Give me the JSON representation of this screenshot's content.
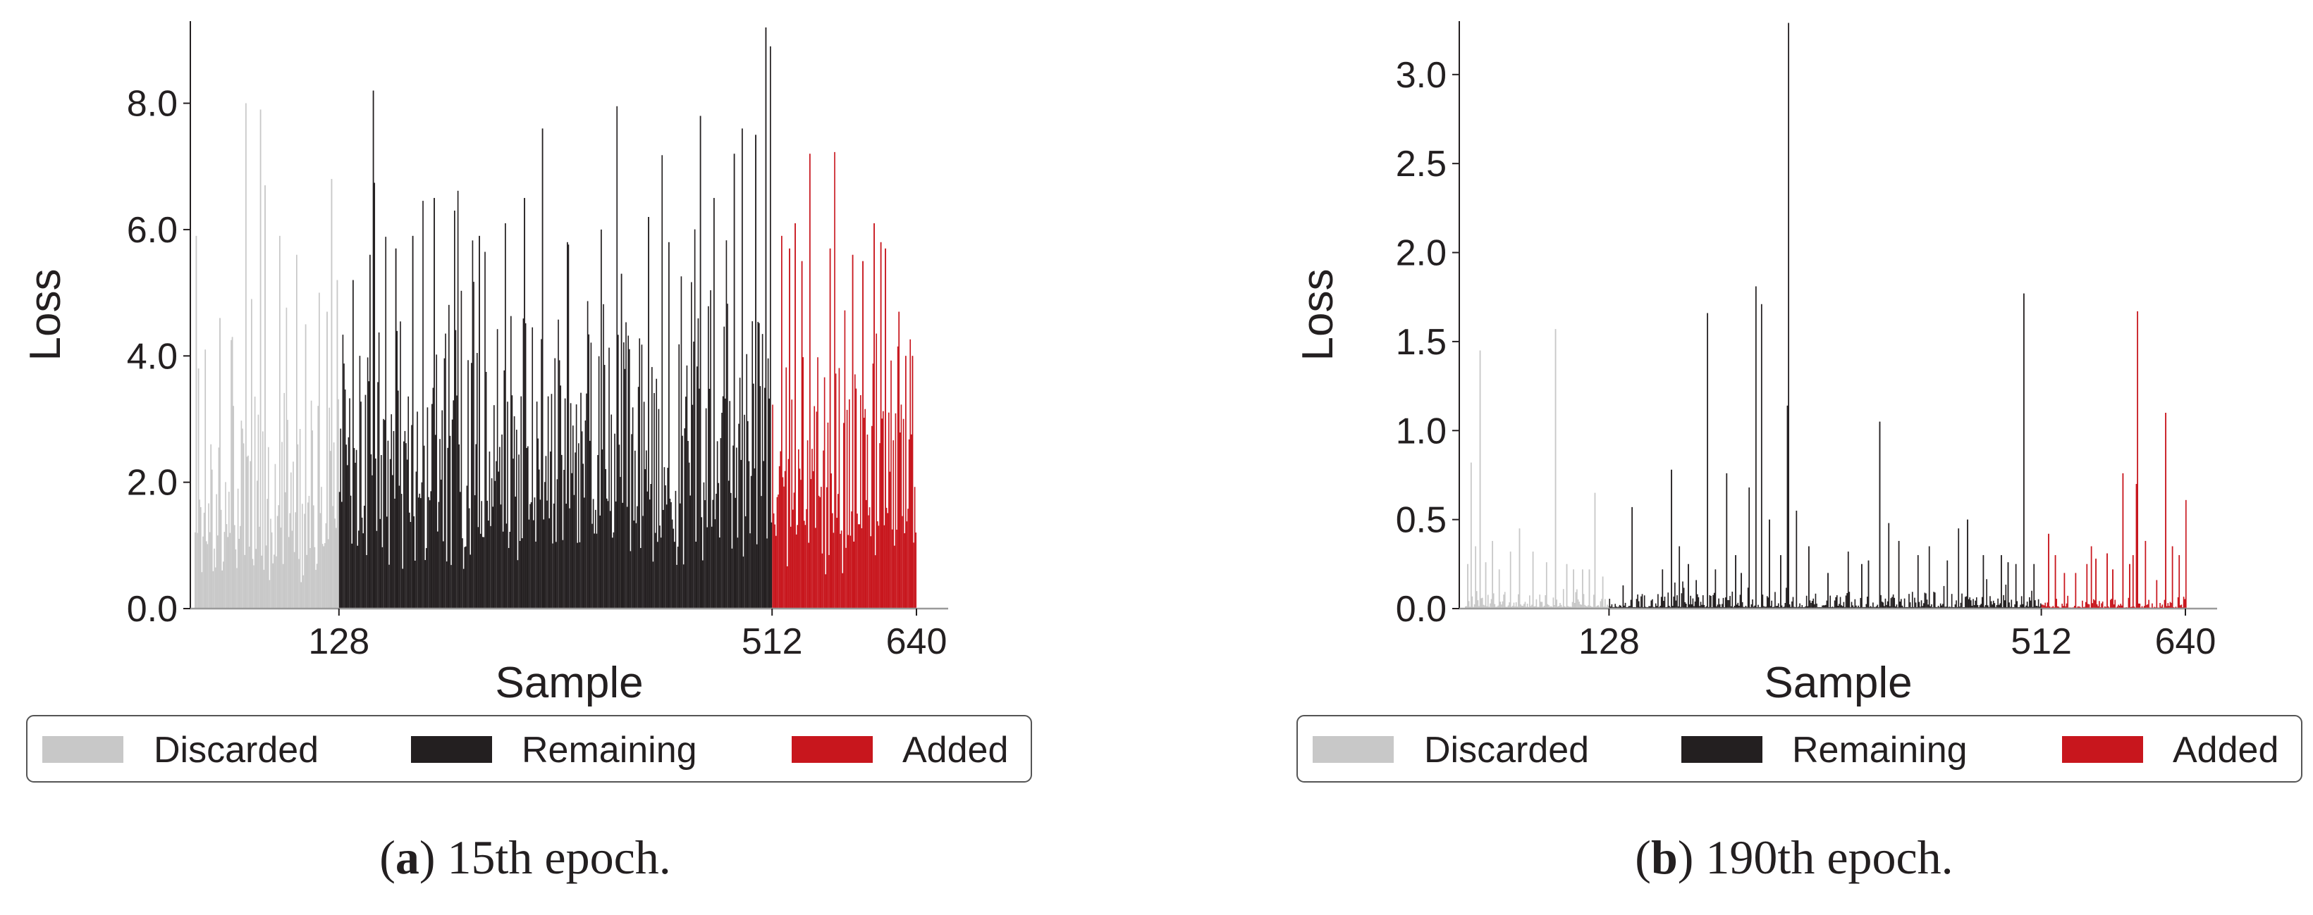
{
  "colors": {
    "discarded": "#c8c8c8",
    "remaining": "#231f20",
    "added": "#c8161d",
    "axis": "#231f20"
  },
  "chart_data": [
    {
      "type": "bar",
      "caption_letter": "a",
      "caption_text": ") 15th epoch.",
      "xlabel": "Sample",
      "ylabel": "Loss",
      "xlim": [
        0,
        640
      ],
      "ylim": [
        0,
        9.3
      ],
      "xticks": [
        128,
        512,
        640
      ],
      "yticks": [
        0,
        2,
        4,
        6,
        8
      ],
      "ytick_labels": [
        "0.0",
        "2.0",
        "4.0",
        "6.0",
        "8.0"
      ],
      "grid": false,
      "legend_position": "bottom",
      "series": [
        {
          "name": "Discarded",
          "x_range": [
            0,
            128
          ],
          "typical_value": 1.6,
          "peaks": [
            [
              1,
              5.9
            ],
            [
              3,
              3.8
            ],
            [
              9,
              4.1
            ],
            [
              14,
              2.6
            ],
            [
              22,
              4.6
            ],
            [
              33,
              4.3
            ],
            [
              45,
              8.0
            ],
            [
              50,
              4.9
            ],
            [
              58,
              7.9
            ],
            [
              62,
              6.7
            ],
            [
              75,
              5.9
            ],
            [
              90,
              5.6
            ],
            [
              98,
              4.5
            ],
            [
              110,
              5.0
            ],
            [
              117,
              4.7
            ],
            [
              121,
              6.8
            ],
            [
              126,
              5.2
            ]
          ]
        },
        {
          "name": "Remaining",
          "x_range": [
            128,
            512
          ],
          "typical_value": 2.3,
          "peaks": [
            [
              140,
              5.2
            ],
            [
              155,
              5.6
            ],
            [
              158,
              8.2
            ],
            [
              178,
              5.7
            ],
            [
              193,
              5.9
            ],
            [
              212,
              6.5
            ],
            [
              230,
              6.3
            ],
            [
              252,
              5.9
            ],
            [
              275,
              6.1
            ],
            [
              292,
              6.5
            ],
            [
              308,
              7.6
            ],
            [
              330,
              5.8
            ],
            [
              360,
              6.0
            ],
            [
              378,
              5.3
            ],
            [
              402,
              6.2
            ],
            [
              420,
              5.8
            ],
            [
              448,
              7.8
            ],
            [
              460,
              6.5
            ],
            [
              478,
              7.2
            ],
            [
              485,
              7.6
            ],
            [
              497,
              7.5
            ],
            [
              506,
              9.2
            ],
            [
              510,
              8.9
            ]
          ]
        },
        {
          "name": "Added",
          "x_range": [
            512,
            640
          ],
          "typical_value": 2.0,
          "peaks": [
            [
              520,
              5.9
            ],
            [
              527,
              5.7
            ],
            [
              532,
              6.1
            ],
            [
              538,
              5.5
            ],
            [
              545,
              7.2
            ],
            [
              563,
              5.7
            ],
            [
              583,
              5.6
            ],
            [
              592,
              5.5
            ],
            [
              602,
              6.1
            ],
            [
              608,
              5.8
            ],
            [
              612,
              5.7
            ],
            [
              624,
              4.7
            ],
            [
              630,
              4.0
            ],
            [
              636,
              4.0
            ]
          ]
        }
      ]
    },
    {
      "type": "bar",
      "caption_letter": "b",
      "caption_text": ") 190th epoch.",
      "xlabel": "Sample",
      "ylabel": "Loss",
      "xlim": [
        0,
        640
      ],
      "ylim": [
        0,
        3.3
      ],
      "xticks": [
        128,
        512,
        640
      ],
      "yticks": [
        0,
        0.5,
        1.0,
        1.5,
        2.0,
        2.5,
        3.0
      ],
      "ytick_labels": [
        "0.0",
        "0.5",
        "1.0",
        "1.5",
        "2.0",
        "2.5",
        "3.0"
      ],
      "grid": false,
      "legend_position": "bottom",
      "series": [
        {
          "name": "Discarded",
          "x_range": [
            0,
            128
          ],
          "typical_value": 0.05,
          "peaks": [
            [
              2,
              0.25
            ],
            [
              5,
              0.82
            ],
            [
              9,
              0.35
            ],
            [
              13,
              1.45
            ],
            [
              18,
              0.26
            ],
            [
              24,
              0.38
            ],
            [
              30,
              0.22
            ],
            [
              40,
              0.32
            ],
            [
              48,
              0.45
            ],
            [
              60,
              0.32
            ],
            [
              72,
              0.26
            ],
            [
              80,
              1.57
            ],
            [
              90,
              0.25
            ],
            [
              96,
              0.22
            ],
            [
              104,
              0.22
            ],
            [
              110,
              0.22
            ],
            [
              115,
              0.65
            ],
            [
              122,
              0.18
            ]
          ]
        },
        {
          "name": "Remaining",
          "x_range": [
            128,
            512
          ],
          "typical_value": 0.04,
          "peaks": [
            [
              140,
              0.13
            ],
            [
              148,
              0.57
            ],
            [
              175,
              0.22
            ],
            [
              183,
              0.78
            ],
            [
              190,
              0.35
            ],
            [
              198,
              0.25
            ],
            [
              205,
              0.16
            ],
            [
              215,
              1.66
            ],
            [
              222,
              0.22
            ],
            [
              232,
              0.76
            ],
            [
              240,
              0.3
            ],
            [
              245,
              0.2
            ],
            [
              252,
              0.68
            ],
            [
              258,
              1.81
            ],
            [
              263,
              1.71
            ],
            [
              270,
              0.5
            ],
            [
              280,
              0.3
            ],
            [
              286,
              1.14
            ],
            [
              287,
              3.29
            ],
            [
              294,
              0.55
            ],
            [
              305,
              0.35
            ],
            [
              322,
              0.2
            ],
            [
              340,
              0.32
            ],
            [
              352,
              0.25
            ],
            [
              358,
              0.27
            ],
            [
              368,
              1.05
            ],
            [
              376,
              0.48
            ],
            [
              385,
              0.38
            ],
            [
              402,
              0.3
            ],
            [
              412,
              0.35
            ],
            [
              428,
              0.27
            ],
            [
              438,
              0.45
            ],
            [
              446,
              0.5
            ],
            [
              460,
              0.3
            ],
            [
              476,
              0.3
            ],
            [
              482,
              0.26
            ],
            [
              489,
              0.25
            ],
            [
              496,
              1.77
            ],
            [
              505,
              0.25
            ]
          ]
        },
        {
          "name": "Added",
          "x_range": [
            512,
            640
          ],
          "typical_value": 0.03,
          "peaks": [
            [
              518,
              0.42
            ],
            [
              524,
              0.3
            ],
            [
              532,
              0.2
            ],
            [
              542,
              0.2
            ],
            [
              552,
              0.25
            ],
            [
              556,
              0.35
            ],
            [
              560,
              0.28
            ],
            [
              570,
              0.31
            ],
            [
              575,
              0.22
            ],
            [
              584,
              0.76
            ],
            [
              590,
              0.25
            ],
            [
              593,
              0.3
            ],
            [
              596,
              0.7
            ],
            [
              597,
              1.67
            ],
            [
              604,
              0.38
            ],
            [
              614,
              0.16
            ],
            [
              622,
              1.1
            ],
            [
              628,
              0.35
            ],
            [
              634,
              0.3
            ],
            [
              640,
              0.61
            ]
          ]
        }
      ]
    }
  ]
}
